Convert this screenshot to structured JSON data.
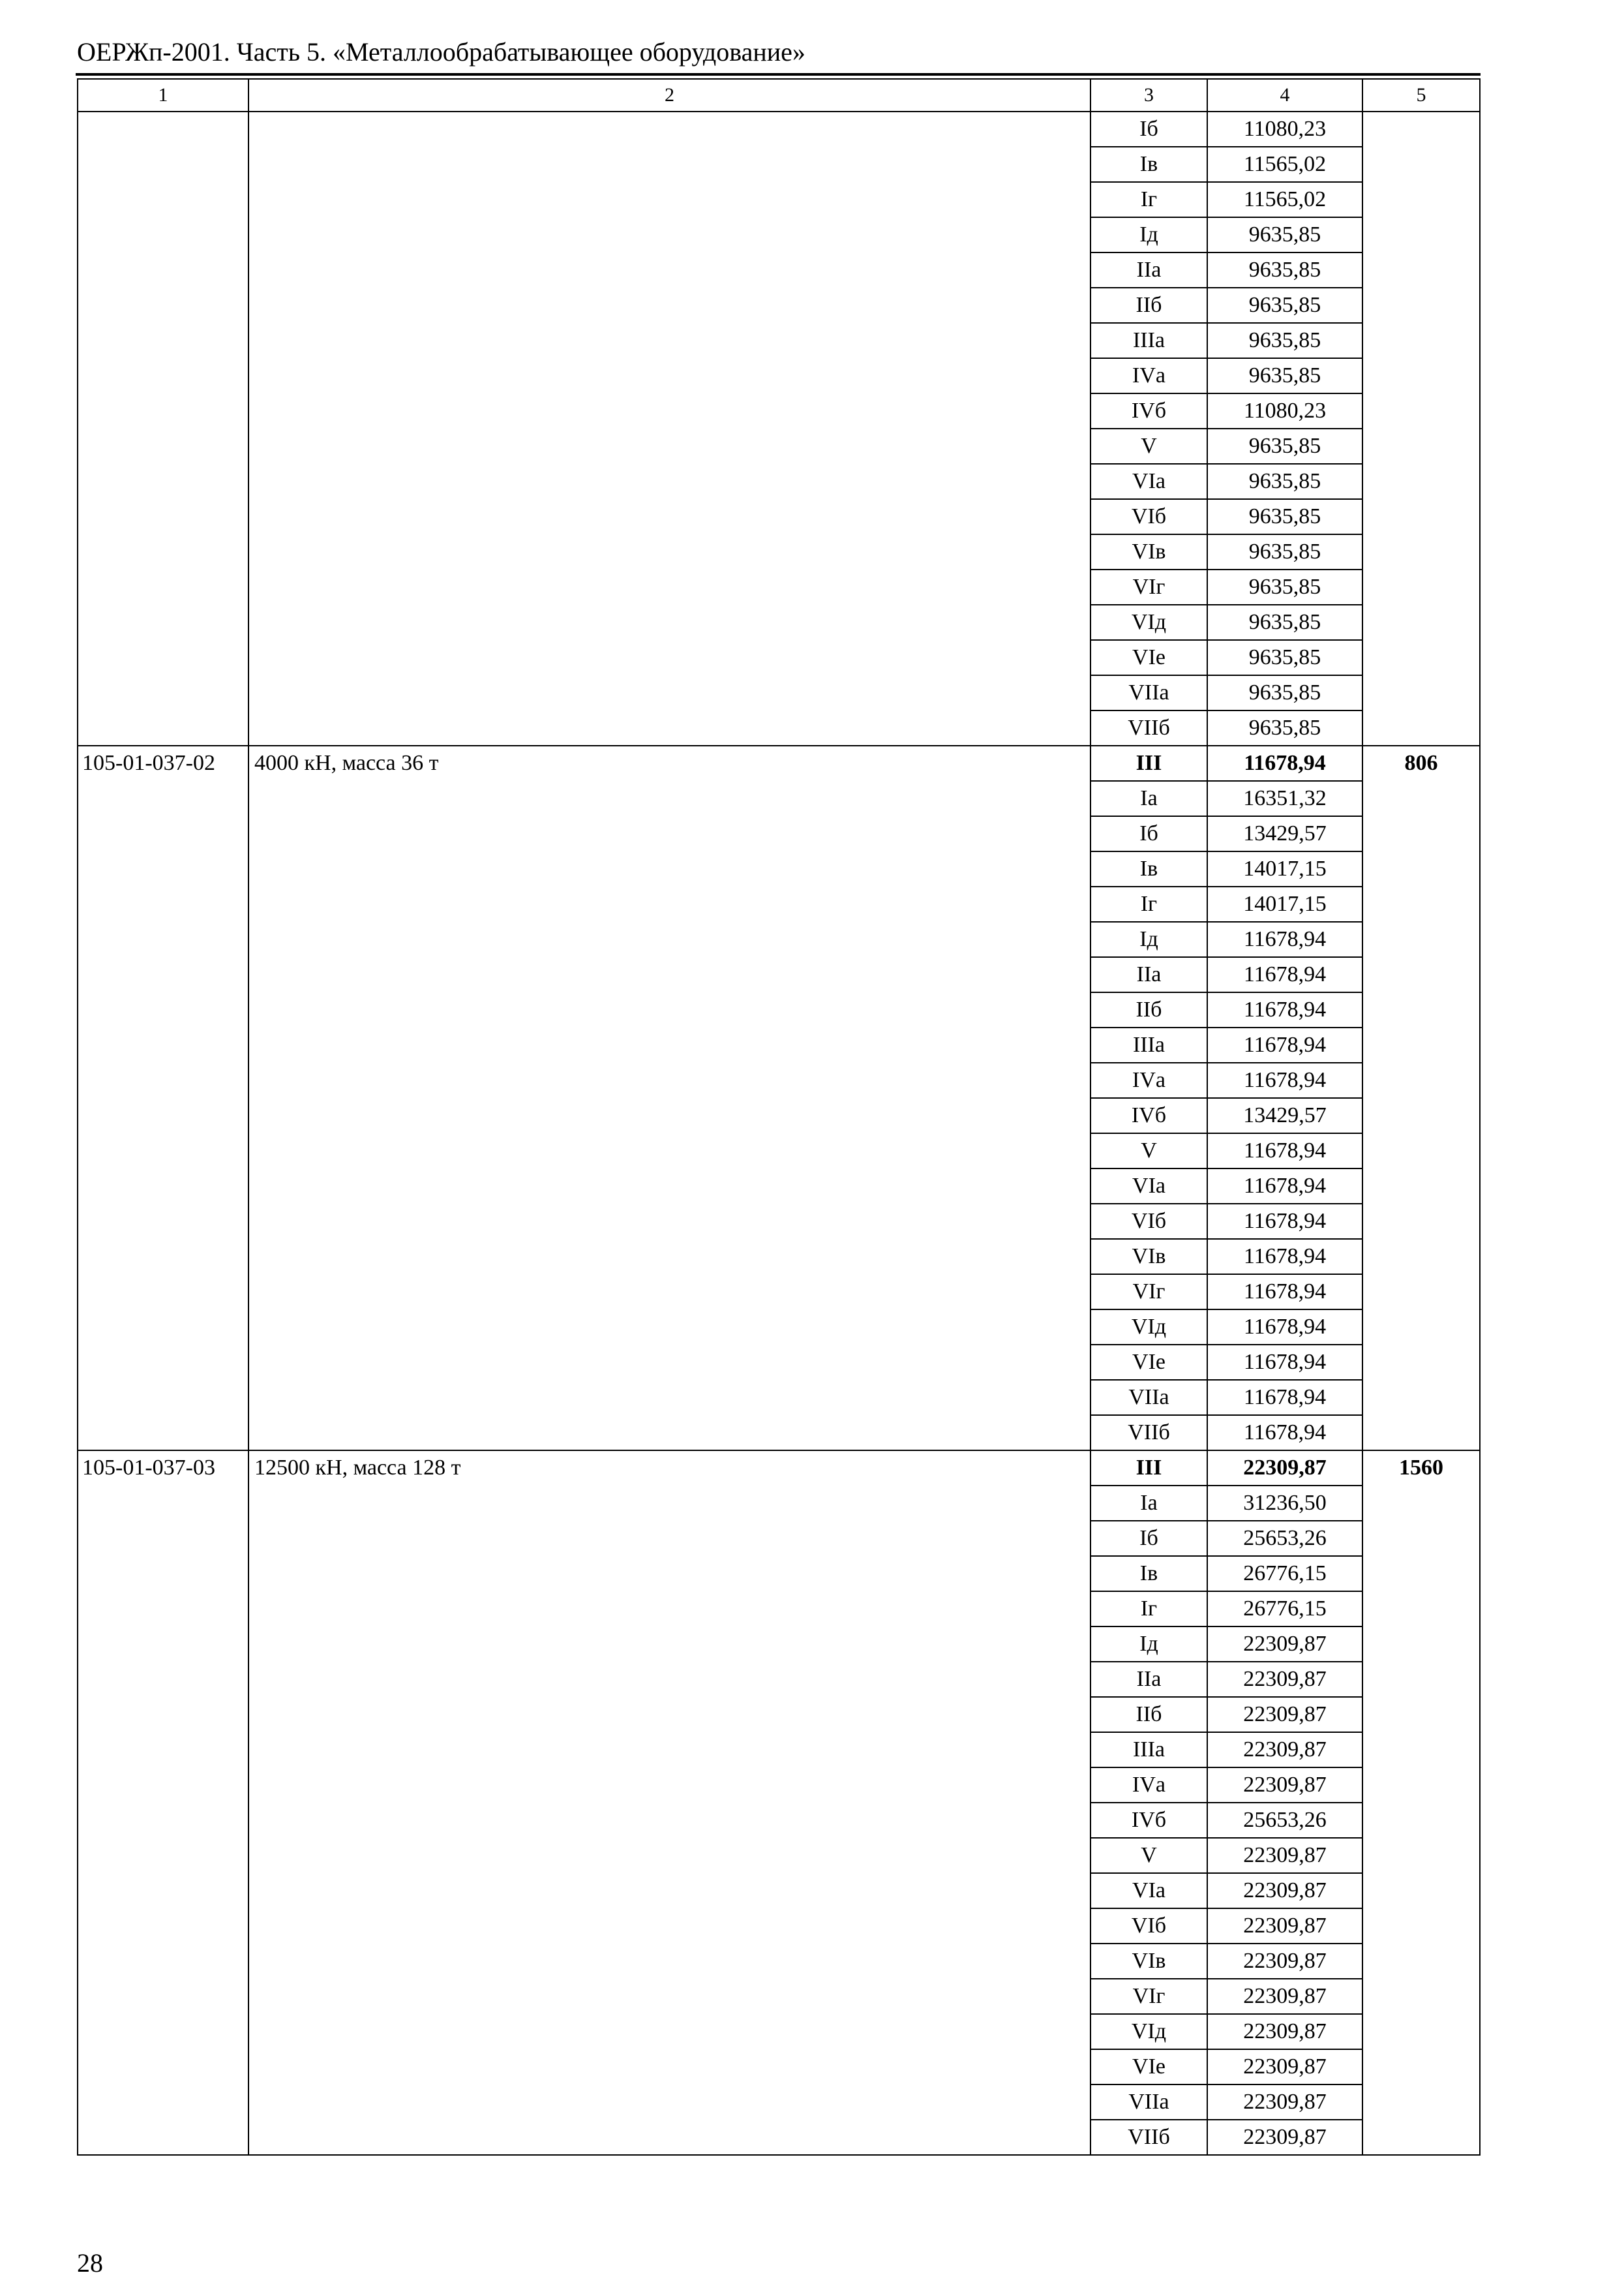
{
  "header": {
    "title": "ОЕРЖп-2001. Часть 5. «Металлообрабатывающее оборудование»"
  },
  "table": {
    "columns": [
      "1",
      "2",
      "3",
      "4",
      "5"
    ],
    "sections": [
      {
        "code": "",
        "description": "",
        "price": "",
        "rows": [
          {
            "region": "Iб",
            "value": "11080,23"
          },
          {
            "region": "Iв",
            "value": "11565,02"
          },
          {
            "region": "Iг",
            "value": "11565,02"
          },
          {
            "region": "Iд",
            "value": "9635,85"
          },
          {
            "region": "IIа",
            "value": "9635,85"
          },
          {
            "region": "IIб",
            "value": "9635,85"
          },
          {
            "region": "IIIа",
            "value": "9635,85"
          },
          {
            "region": "IVа",
            "value": "9635,85"
          },
          {
            "region": "IVб",
            "value": "11080,23"
          },
          {
            "region": "V",
            "value": "9635,85"
          },
          {
            "region": "VIа",
            "value": "9635,85"
          },
          {
            "region": "VIб",
            "value": "9635,85"
          },
          {
            "region": "VIв",
            "value": "9635,85"
          },
          {
            "region": "VIг",
            "value": "9635,85"
          },
          {
            "region": "VIд",
            "value": "9635,85"
          },
          {
            "region": "VIе",
            "value": "9635,85"
          },
          {
            "region": "VIIа",
            "value": "9635,85"
          },
          {
            "region": "VIIб",
            "value": "9635,85"
          }
        ]
      },
      {
        "code": "105-01-037-02",
        "description": "4000 кН, масса 36 т",
        "price": "806",
        "rows": [
          {
            "region": "III",
            "value": "11678,94",
            "bold": true
          },
          {
            "region": "Iа",
            "value": "16351,32"
          },
          {
            "region": "Iб",
            "value": "13429,57"
          },
          {
            "region": "Iв",
            "value": "14017,15"
          },
          {
            "region": "Iг",
            "value": "14017,15"
          },
          {
            "region": "Iд",
            "value": "11678,94"
          },
          {
            "region": "IIа",
            "value": "11678,94"
          },
          {
            "region": "IIб",
            "value": "11678,94"
          },
          {
            "region": "IIIа",
            "value": "11678,94"
          },
          {
            "region": "IVа",
            "value": "11678,94"
          },
          {
            "region": "IVб",
            "value": "13429,57"
          },
          {
            "region": "V",
            "value": "11678,94"
          },
          {
            "region": "VIа",
            "value": "11678,94"
          },
          {
            "region": "VIб",
            "value": "11678,94"
          },
          {
            "region": "VIв",
            "value": "11678,94"
          },
          {
            "region": "VIг",
            "value": "11678,94"
          },
          {
            "region": "VIд",
            "value": "11678,94"
          },
          {
            "region": "VIе",
            "value": "11678,94"
          },
          {
            "region": "VIIа",
            "value": "11678,94"
          },
          {
            "region": "VIIб",
            "value": "11678,94"
          }
        ]
      },
      {
        "code": "105-01-037-03",
        "description": "12500 кН, масса 128 т",
        "price": "1560",
        "rows": [
          {
            "region": "III",
            "value": "22309,87",
            "bold": true
          },
          {
            "region": "Iа",
            "value": "31236,50"
          },
          {
            "region": "Iб",
            "value": "25653,26"
          },
          {
            "region": "Iв",
            "value": "26776,15"
          },
          {
            "region": "Iг",
            "value": "26776,15"
          },
          {
            "region": "Iд",
            "value": "22309,87"
          },
          {
            "region": "IIа",
            "value": "22309,87"
          },
          {
            "region": "IIб",
            "value": "22309,87"
          },
          {
            "region": "IIIа",
            "value": "22309,87"
          },
          {
            "region": "IVа",
            "value": "22309,87"
          },
          {
            "region": "IVб",
            "value": "25653,26"
          },
          {
            "region": "V",
            "value": "22309,87"
          },
          {
            "region": "VIа",
            "value": "22309,87"
          },
          {
            "region": "VIб",
            "value": "22309,87"
          },
          {
            "region": "VIв",
            "value": "22309,87"
          },
          {
            "region": "VIг",
            "value": "22309,87"
          },
          {
            "region": "VIд",
            "value": "22309,87"
          },
          {
            "region": "VIе",
            "value": "22309,87"
          },
          {
            "region": "VIIа",
            "value": "22309,87"
          },
          {
            "region": "VIIб",
            "value": "22309,87"
          }
        ]
      }
    ]
  },
  "footer": {
    "page_number": "28"
  }
}
